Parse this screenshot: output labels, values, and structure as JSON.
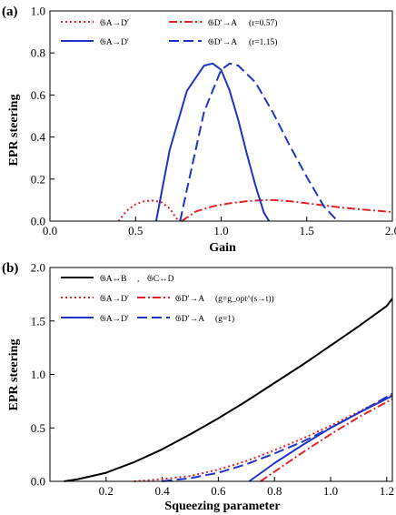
{
  "chart_data": [
    {
      "type": "line",
      "panel_label": "(a)",
      "xlabel": "Gain",
      "ylabel": "EPR steering",
      "xlim": [
        0.0,
        2.0
      ],
      "ylim": [
        0.0,
        1.0
      ],
      "xticks": [
        "0.0",
        "0.5",
        "1.0",
        "1.5",
        "2.0"
      ],
      "yticks": [
        "0.0",
        "0.2",
        "0.4",
        "0.6",
        "0.8",
        "1.0"
      ],
      "legend_position": "top",
      "legend_notes": [
        "(r=0.57)",
        "(r=1.15)"
      ],
      "series": [
        {
          "name": "𝔊A→D′",
          "color": "#e8202a",
          "dash": "dotted",
          "x": [
            0.4,
            0.45,
            0.5,
            0.55,
            0.6,
            0.65,
            0.7,
            0.75
          ],
          "y": [
            0.0,
            0.05,
            0.08,
            0.095,
            0.098,
            0.09,
            0.06,
            0.0
          ]
        },
        {
          "name": "𝔊D′→A",
          "color": "#e8202a",
          "dash": "dashdot",
          "x": [
            0.77,
            0.85,
            0.95,
            1.05,
            1.15,
            1.25,
            1.3,
            1.4,
            1.5,
            1.6,
            1.7,
            1.8,
            1.9,
            2.0
          ],
          "y": [
            0.0,
            0.045,
            0.07,
            0.085,
            0.095,
            0.1,
            0.1,
            0.095,
            0.085,
            0.075,
            0.065,
            0.057,
            0.05,
            0.043
          ]
        },
        {
          "name": "𝔊A→D′",
          "color": "#1f35c6",
          "dash": "solid",
          "x": [
            0.62,
            0.7,
            0.8,
            0.9,
            0.95,
            1.0,
            1.05,
            1.1,
            1.15,
            1.2,
            1.25,
            1.28
          ],
          "y": [
            0.0,
            0.34,
            0.62,
            0.74,
            0.75,
            0.72,
            0.62,
            0.48,
            0.32,
            0.17,
            0.04,
            0.0
          ]
        },
        {
          "name": "𝔊D′→A",
          "color": "#1f35c6",
          "dash": "dashed",
          "x": [
            0.76,
            0.8,
            0.9,
            1.0,
            1.05,
            1.1,
            1.2,
            1.3,
            1.4,
            1.5,
            1.6,
            1.68
          ],
          "y": [
            0.0,
            0.15,
            0.52,
            0.72,
            0.75,
            0.74,
            0.66,
            0.52,
            0.36,
            0.21,
            0.07,
            0.0
          ]
        }
      ]
    },
    {
      "type": "line",
      "panel_label": "(b)",
      "xlabel": "Squeezing parameter",
      "ylabel": "EPR steering",
      "xlim": [
        0.0,
        1.22
      ],
      "ylim": [
        0.0,
        2.0
      ],
      "xticks": [
        "0.2",
        "0.4",
        "0.6",
        "0.8",
        "1.0",
        "1.2"
      ],
      "yticks": [
        "0.0",
        "0.5",
        "1.0",
        "1.5",
        "2.0"
      ],
      "legend_position": "top-left",
      "legend_separator": ",",
      "legend_notes": [
        "(g=g_opt^(s→t))",
        "(g=1)"
      ],
      "series": [
        {
          "name": "𝔊A↔B",
          "color": "#000000",
          "dash": "solid",
          "x": [
            0.05,
            0.1,
            0.2,
            0.3,
            0.4,
            0.5,
            0.6,
            0.7,
            0.8,
            0.9,
            1.0,
            1.1,
            1.2,
            1.22
          ],
          "y": [
            0.0,
            0.02,
            0.08,
            0.18,
            0.3,
            0.44,
            0.59,
            0.75,
            0.92,
            1.09,
            1.27,
            1.45,
            1.64,
            1.71
          ]
        },
        {
          "name": "𝔊C↔D",
          "color": "#000000",
          "dash": "solid"
        },
        {
          "name": "𝔊A→D′",
          "color": "#e8202a",
          "dash": "dotted",
          "x": [
            0.3,
            0.4,
            0.5,
            0.6,
            0.7,
            0.8,
            0.9,
            1.0,
            1.1,
            1.22
          ],
          "y": [
            0.0,
            0.02,
            0.05,
            0.11,
            0.19,
            0.29,
            0.4,
            0.52,
            0.65,
            0.81
          ]
        },
        {
          "name": "𝔊D′→A",
          "color": "#e8202a",
          "dash": "dashdot",
          "x": [
            0.75,
            0.8,
            0.9,
            1.0,
            1.1,
            1.22
          ],
          "y": [
            0.0,
            0.09,
            0.27,
            0.44,
            0.6,
            0.77
          ]
        },
        {
          "name": "𝔊A→D′",
          "color": "#1f35c6",
          "dash": "solid",
          "x": [
            0.71,
            0.8,
            0.9,
            1.0,
            1.1,
            1.22
          ],
          "y": [
            0.0,
            0.17,
            0.34,
            0.5,
            0.64,
            0.8
          ]
        },
        {
          "name": "𝔊D′→A",
          "color": "#1f35c6",
          "dash": "dashed",
          "x": [
            0.4,
            0.5,
            0.6,
            0.7,
            0.8,
            0.9,
            1.0,
            1.1,
            1.22
          ],
          "y": [
            0.0,
            0.03,
            0.08,
            0.16,
            0.26,
            0.37,
            0.5,
            0.64,
            0.82
          ]
        }
      ]
    }
  ]
}
